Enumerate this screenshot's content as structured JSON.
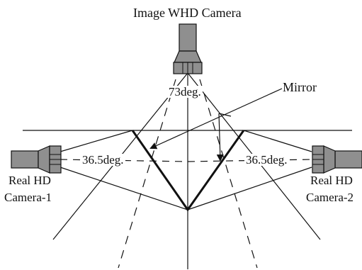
{
  "diagram": {
    "top_camera_label": "Image WHD Camera",
    "mirror_label": "Mirror",
    "top_angle_label": "73deg.",
    "left_angle_label": "36.5deg.",
    "right_angle_label": "36.5deg.",
    "left_camera_label_line1": "Real HD",
    "left_camera_label_line2": "Camera-1",
    "right_camera_label_line1": "Real HD",
    "right_camera_label_line2": "Camera-2"
  },
  "colors": {
    "stroke": "#111111",
    "camera_fill": "#8f8f8f",
    "background": "#ffffff"
  },
  "icons": [
    "camera-icon",
    "camera-icon",
    "camera-icon"
  ]
}
